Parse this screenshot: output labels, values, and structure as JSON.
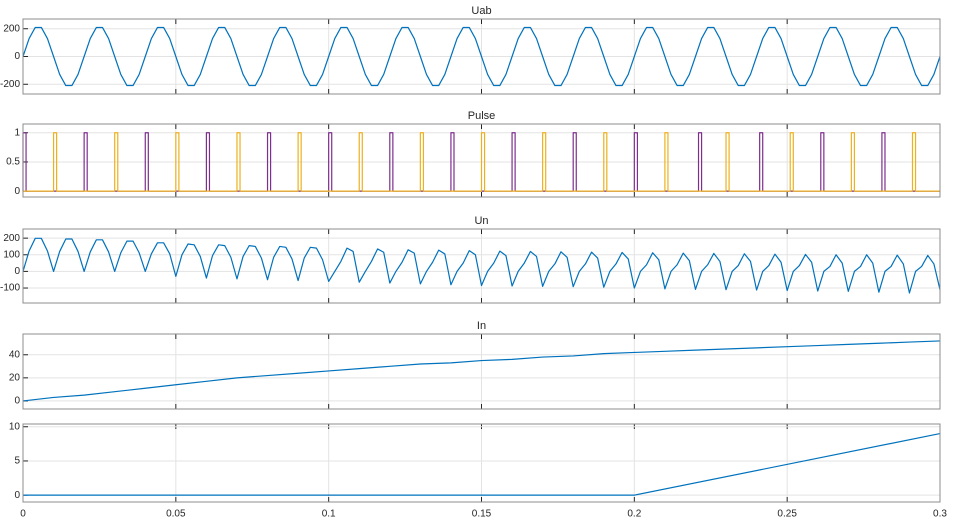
{
  "chart_data": [
    {
      "type": "line",
      "title": "Uab",
      "color": "#0072bd",
      "grid": true,
      "xlim": [
        0,
        0.3
      ],
      "xticks": [
        0,
        0.05,
        0.1,
        0.15,
        0.2,
        0.25,
        0.3
      ],
      "ylim": [
        -270,
        270
      ],
      "yticks": [
        -200,
        0,
        200
      ],
      "x": [
        0,
        0.002,
        0.004,
        0.006,
        0.008,
        0.01,
        0.012,
        0.014,
        0.016,
        0.018,
        0.02,
        0.022,
        0.024,
        0.026,
        0.028,
        0.03,
        0.032,
        0.034,
        0.036,
        0.038,
        0.04,
        0.042,
        0.044,
        0.046,
        0.048,
        0.05,
        0.052,
        0.054,
        0.056,
        0.058,
        0.06,
        0.062,
        0.064,
        0.066,
        0.068,
        0.07,
        0.072,
        0.074,
        0.076,
        0.078,
        0.08,
        0.082,
        0.084,
        0.086,
        0.088,
        0.09,
        0.092,
        0.094,
        0.096,
        0.098,
        0.1,
        0.102,
        0.104,
        0.106,
        0.108,
        0.11,
        0.112,
        0.114,
        0.116,
        0.118,
        0.12,
        0.122,
        0.124,
        0.126,
        0.128,
        0.13,
        0.132,
        0.134,
        0.136,
        0.138,
        0.14,
        0.142,
        0.144,
        0.146,
        0.148,
        0.15,
        0.152,
        0.154,
        0.156,
        0.158,
        0.16,
        0.162,
        0.164,
        0.166,
        0.168,
        0.17,
        0.172,
        0.174,
        0.176,
        0.178,
        0.18,
        0.182,
        0.184,
        0.186,
        0.188,
        0.19,
        0.192,
        0.194,
        0.196,
        0.198,
        0.2,
        0.202,
        0.204,
        0.206,
        0.208,
        0.21,
        0.212,
        0.214,
        0.216,
        0.218,
        0.22,
        0.222,
        0.224,
        0.226,
        0.228,
        0.23,
        0.232,
        0.234,
        0.236,
        0.238,
        0.24,
        0.242,
        0.244,
        0.246,
        0.248,
        0.25,
        0.252,
        0.254,
        0.256,
        0.258,
        0.26,
        0.262,
        0.264,
        0.266,
        0.268,
        0.27,
        0.272,
        0.274,
        0.276,
        0.278,
        0.28,
        0.282,
        0.284,
        0.286,
        0.288,
        0.29,
        0.292,
        0.294,
        0.296,
        0.298,
        0.3
      ],
      "values": [
        0,
        129,
        209,
        209,
        129,
        0,
        -129,
        -209,
        -209,
        -129,
        0,
        129,
        209,
        209,
        129,
        0,
        -129,
        -209,
        -209,
        -129,
        0,
        129,
        209,
        209,
        129,
        0,
        -129,
        -209,
        -209,
        -129,
        0,
        129,
        209,
        209,
        129,
        0,
        -129,
        -209,
        -209,
        -129,
        0,
        129,
        209,
        209,
        129,
        0,
        -129,
        -209,
        -209,
        -129,
        0,
        129,
        209,
        209,
        129,
        0,
        -129,
        -209,
        -209,
        -129,
        0,
        129,
        209,
        209,
        129,
        0,
        -129,
        -209,
        -209,
        -129,
        0,
        129,
        209,
        209,
        129,
        0,
        -129,
        -209,
        -209,
        -129,
        0,
        129,
        209,
        209,
        129,
        0,
        -129,
        -209,
        -209,
        -129,
        0,
        129,
        209,
        209,
        129,
        0,
        -129,
        -209,
        -209,
        -129,
        0,
        129,
        209,
        209,
        129,
        0,
        -129,
        -209,
        -209,
        -129,
        0,
        129,
        209,
        209,
        129,
        0,
        -129,
        -209,
        -209,
        -129,
        0,
        129,
        209,
        209,
        129,
        0,
        -129,
        -209,
        -209,
        -129,
        0,
        129,
        209,
        209,
        129,
        0,
        -129,
        -209,
        -209,
        -129,
        0,
        129,
        209,
        209,
        129,
        0,
        -129,
        -209,
        -209,
        -129,
        0
      ]
    },
    {
      "type": "line",
      "title": "Pulse",
      "grid": true,
      "xlim": [
        0,
        0.3
      ],
      "xticks": [
        0,
        0.05,
        0.1,
        0.15,
        0.2,
        0.25,
        0.3
      ],
      "ylim": [
        -0.1,
        1.15
      ],
      "yticks": [
        0,
        0.5,
        1
      ],
      "series": [
        {
          "color": "#7e2f8e",
          "x": [
            0,
            0,
            0.001,
            0.001,
            0.02,
            0.02,
            0.021,
            0.021,
            0.04,
            0.04,
            0.041,
            0.041,
            0.06,
            0.06,
            0.061,
            0.061,
            0.08,
            0.08,
            0.081,
            0.081,
            0.1,
            0.1,
            0.101,
            0.101,
            0.12,
            0.12,
            0.121,
            0.121,
            0.14,
            0.14,
            0.141,
            0.141,
            0.16,
            0.16,
            0.161,
            0.161,
            0.18,
            0.18,
            0.181,
            0.181,
            0.2,
            0.2,
            0.201,
            0.201,
            0.221,
            0.221,
            0.222,
            0.222,
            0.241,
            0.241,
            0.242,
            0.242,
            0.261,
            0.261,
            0.262,
            0.262,
            0.281,
            0.281,
            0.282,
            0.282,
            0.3
          ],
          "values": [
            0,
            1,
            1,
            0,
            0,
            1,
            1,
            0,
            0,
            1,
            1,
            0,
            0,
            1,
            1,
            0,
            0,
            1,
            1,
            0,
            0,
            1,
            1,
            0,
            0,
            1,
            1,
            0,
            0,
            1,
            1,
            0,
            0,
            1,
            1,
            0,
            0,
            1,
            1,
            0,
            0,
            1,
            1,
            0,
            0,
            1,
            1,
            0,
            0,
            1,
            1,
            0,
            0,
            1,
            1,
            0,
            0,
            1,
            1,
            0,
            0
          ]
        },
        {
          "color": "#edb120",
          "x": [
            0,
            0.01,
            0.01,
            0.011,
            0.011,
            0.03,
            0.03,
            0.031,
            0.031,
            0.05,
            0.05,
            0.051,
            0.051,
            0.07,
            0.07,
            0.071,
            0.071,
            0.09,
            0.09,
            0.091,
            0.091,
            0.11,
            0.11,
            0.111,
            0.111,
            0.13,
            0.13,
            0.131,
            0.131,
            0.15,
            0.15,
            0.151,
            0.151,
            0.17,
            0.17,
            0.171,
            0.171,
            0.19,
            0.19,
            0.191,
            0.191,
            0.21,
            0.21,
            0.211,
            0.211,
            0.23,
            0.23,
            0.231,
            0.231,
            0.251,
            0.251,
            0.252,
            0.252,
            0.271,
            0.271,
            0.272,
            0.272,
            0.291,
            0.291,
            0.292,
            0.292,
            0.3
          ],
          "values": [
            0,
            0,
            1,
            1,
            0,
            0,
            1,
            1,
            0,
            0,
            1,
            1,
            0,
            0,
            1,
            1,
            0,
            0,
            1,
            1,
            0,
            0,
            1,
            1,
            0,
            0,
            1,
            1,
            0,
            0,
            1,
            1,
            0,
            0,
            1,
            1,
            0,
            0,
            1,
            1,
            0,
            0,
            1,
            1,
            0,
            0,
            1,
            1,
            0,
            0,
            1,
            1,
            0,
            0,
            1,
            1,
            0,
            0,
            1,
            1,
            0,
            0
          ]
        }
      ]
    },
    {
      "type": "line",
      "title": "Un",
      "color": "#0072bd",
      "grid": true,
      "xlim": [
        0,
        0.3
      ],
      "xticks": [
        0,
        0.05,
        0.1,
        0.15,
        0.2,
        0.25,
        0.3
      ],
      "ylim": [
        -190,
        255
      ],
      "yticks": [
        -100,
        0,
        100,
        200
      ],
      "x": [
        0,
        0.002,
        0.004,
        0.006,
        0.008,
        0.01,
        0.012,
        0.014,
        0.016,
        0.018,
        0.02,
        0.022,
        0.024,
        0.026,
        0.028,
        0.03,
        0.032,
        0.034,
        0.036,
        0.038,
        0.04,
        0.042,
        0.044,
        0.046,
        0.048,
        0.05,
        0.052,
        0.054,
        0.056,
        0.058,
        0.06,
        0.062,
        0.064,
        0.066,
        0.068,
        0.07,
        0.072,
        0.074,
        0.076,
        0.078,
        0.08,
        0.082,
        0.084,
        0.086,
        0.088,
        0.09,
        0.092,
        0.094,
        0.096,
        0.098,
        0.1,
        0.102,
        0.104,
        0.106,
        0.108,
        0.11,
        0.112,
        0.114,
        0.116,
        0.118,
        0.12,
        0.122,
        0.124,
        0.126,
        0.128,
        0.13,
        0.132,
        0.134,
        0.136,
        0.138,
        0.14,
        0.142,
        0.144,
        0.146,
        0.148,
        0.15,
        0.152,
        0.154,
        0.156,
        0.158,
        0.16,
        0.162,
        0.164,
        0.166,
        0.168,
        0.17,
        0.172,
        0.174,
        0.176,
        0.178,
        0.18,
        0.182,
        0.184,
        0.186,
        0.188,
        0.19,
        0.192,
        0.194,
        0.196,
        0.198,
        0.2,
        0.202,
        0.204,
        0.206,
        0.208,
        0.21,
        0.212,
        0.214,
        0.216,
        0.218,
        0.22,
        0.222,
        0.224,
        0.226,
        0.228,
        0.23,
        0.232,
        0.234,
        0.236,
        0.238,
        0.24,
        0.242,
        0.244,
        0.246,
        0.248,
        0.25,
        0.252,
        0.254,
        0.256,
        0.258,
        0.26,
        0.262,
        0.264,
        0.266,
        0.268,
        0.27,
        0.272,
        0.274,
        0.276,
        0.278,
        0.28,
        0.282,
        0.284,
        0.286,
        0.288,
        0.29,
        0.292,
        0.294,
        0.296,
        0.298,
        0.3
      ],
      "values": [
        0,
        123,
        199,
        199,
        123,
        0,
        120,
        195,
        195,
        120,
        0,
        117,
        190,
        190,
        117,
        0,
        112,
        182,
        182,
        112,
        0,
        106,
        172,
        172,
        106,
        -30,
        100,
        165,
        160,
        90,
        -40,
        95,
        160,
        155,
        85,
        -45,
        90,
        155,
        150,
        80,
        -50,
        85,
        150,
        145,
        75,
        -55,
        80,
        145,
        140,
        70,
        -60,
        0,
        60,
        140,
        120,
        -65,
        0,
        60,
        135,
        115,
        -70,
        0,
        55,
        130,
        110,
        -75,
        0,
        55,
        128,
        105,
        -80,
        0,
        50,
        125,
        100,
        -85,
        0,
        50,
        122,
        95,
        -88,
        0,
        50,
        120,
        90,
        -90,
        0,
        45,
        118,
        85,
        -92,
        0,
        45,
        116,
        80,
        -95,
        0,
        45,
        114,
        75,
        -100,
        0,
        40,
        112,
        70,
        -105,
        0,
        40,
        110,
        65,
        -108,
        0,
        40,
        108,
        60,
        -110,
        0,
        35,
        106,
        60,
        -112,
        0,
        35,
        104,
        55,
        -115,
        0,
        35,
        102,
        55,
        -118,
        0,
        30,
        100,
        50,
        -120,
        0,
        30,
        100,
        50,
        -125,
        0,
        30,
        98,
        45,
        -130,
        0,
        30,
        96,
        45,
        -110
      ]
    },
    {
      "type": "line",
      "title": "In",
      "color": "#0072bd",
      "grid": true,
      "xlim": [
        0,
        0.3
      ],
      "xticks": [
        0,
        0.05,
        0.1,
        0.15,
        0.2,
        0.25,
        0.3
      ],
      "ylim": [
        -7,
        58
      ],
      "yticks": [
        0,
        20,
        40
      ],
      "x": [
        0,
        0.01,
        0.02,
        0.03,
        0.04,
        0.05,
        0.06,
        0.07,
        0.08,
        0.09,
        0.1,
        0.11,
        0.12,
        0.13,
        0.14,
        0.15,
        0.16,
        0.17,
        0.18,
        0.19,
        0.2,
        0.21,
        0.22,
        0.23,
        0.24,
        0.25,
        0.26,
        0.27,
        0.28,
        0.29,
        0.3
      ],
      "values": [
        0,
        3,
        5,
        8,
        11,
        14,
        17,
        20,
        22,
        24,
        26,
        28,
        30,
        32,
        33,
        35,
        36,
        38,
        39,
        41,
        42,
        43,
        44,
        45,
        46,
        47,
        48,
        49,
        50,
        51,
        52
      ]
    },
    {
      "type": "line",
      "color": "#0072bd",
      "grid": true,
      "xlim": [
        0,
        0.3
      ],
      "xticks": [
        0,
        0.05,
        0.1,
        0.15,
        0.2,
        0.25,
        0.3
      ],
      "ylim": [
        -1,
        10.4
      ],
      "yticks": [
        0,
        5,
        10
      ],
      "x": [
        0,
        0.2,
        0.3
      ],
      "values": [
        0,
        0,
        9
      ]
    }
  ]
}
